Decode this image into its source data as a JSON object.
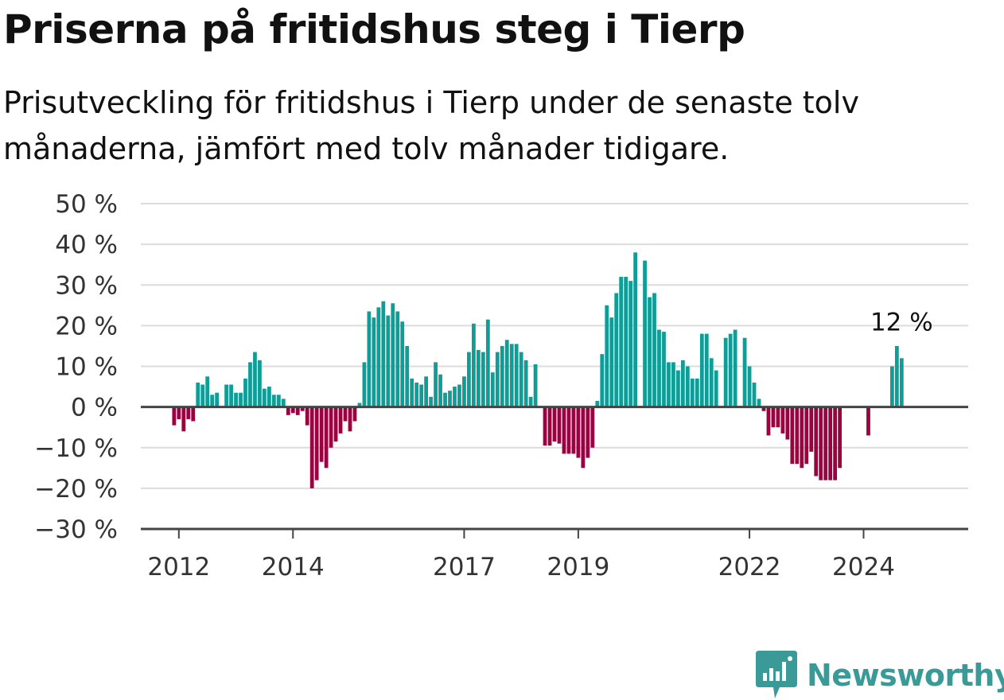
{
  "title": "Priserna på fritidshus steg i Tierp",
  "subtitle": "Prisutveckling för fritidshus i Tierp under de senaste tolv månaderna, jämfört med tolv månader tidigare.",
  "brand": {
    "name": "Newsworthy",
    "icon": "newsworthy-logo-icon",
    "color": "#3a9a98"
  },
  "colors": {
    "positive": "#0e9e97",
    "negative": "#9b0040",
    "grid": "#dcdcdc",
    "zero_line": "#444444"
  },
  "chart_data": {
    "type": "bar",
    "title": "Priserna på fritidshus steg i Tierp",
    "ylim": [
      -30,
      50
    ],
    "yticks": [
      50,
      40,
      30,
      20,
      10,
      0,
      -10,
      -20,
      -30
    ],
    "ytick_labels": [
      "50 %",
      "40 %",
      "30 %",
      "20 %",
      "10 %",
      "0 %",
      "−10 %",
      "−20 %",
      "−30 %"
    ],
    "xlim": [
      "2011-05",
      "2025-11"
    ],
    "xticks": [
      "2012-01",
      "2014-01",
      "2017-01",
      "2019-01",
      "2022-01",
      "2024-01"
    ],
    "xtick_labels": [
      "2012",
      "2014",
      "2017",
      "2019",
      "2022",
      "2024"
    ],
    "grid": true,
    "end_label": "12 %",
    "start_month": "2011-05",
    "values": [
      null,
      null,
      null,
      null,
      null,
      null,
      null,
      -4.5,
      -3,
      -6,
      -3,
      -3.5,
      6,
      5.5,
      7.5,
      3,
      3.5,
      null,
      5.5,
      5.5,
      3.5,
      3.5,
      7,
      11,
      13.5,
      11.5,
      4.5,
      5,
      3,
      3,
      2,
      -2,
      -1.5,
      -2,
      -1,
      -4.5,
      -20,
      -18,
      -13.5,
      -15,
      -10,
      -8.5,
      -6.5,
      -3.5,
      -6,
      -3.5,
      1,
      11,
      23.5,
      22,
      24.5,
      26,
      22.5,
      25.5,
      23.5,
      21,
      15,
      7,
      6,
      5.5,
      7.5,
      2.5,
      11,
      8,
      3.5,
      4,
      5,
      5.5,
      7.5,
      13.5,
      20.5,
      14,
      13.5,
      21.5,
      8.5,
      13.5,
      15,
      16.5,
      15.5,
      15.5,
      13.5,
      11.5,
      2.5,
      10.5,
      null,
      -9.5,
      -9.5,
      -8.5,
      -9,
      -11.5,
      -11.5,
      -11.5,
      -12.5,
      -15,
      -12.5,
      -10,
      1.5,
      13,
      25,
      22,
      28,
      32,
      32,
      31,
      38,
      null,
      36,
      27,
      28,
      19,
      18.5,
      11,
      11,
      9,
      11.5,
      10,
      7,
      7,
      18,
      18,
      12,
      9,
      null,
      17,
      18,
      19,
      null,
      17,
      10,
      6,
      2,
      -1,
      -7,
      -5,
      -5,
      -6.5,
      -8,
      -14,
      -14,
      -15,
      -14,
      -11,
      -17,
      -18,
      -18,
      -18,
      -18,
      -15,
      null,
      null,
      null,
      null,
      null,
      -7,
      null,
      null,
      null,
      null,
      10,
      15,
      12
    ]
  }
}
